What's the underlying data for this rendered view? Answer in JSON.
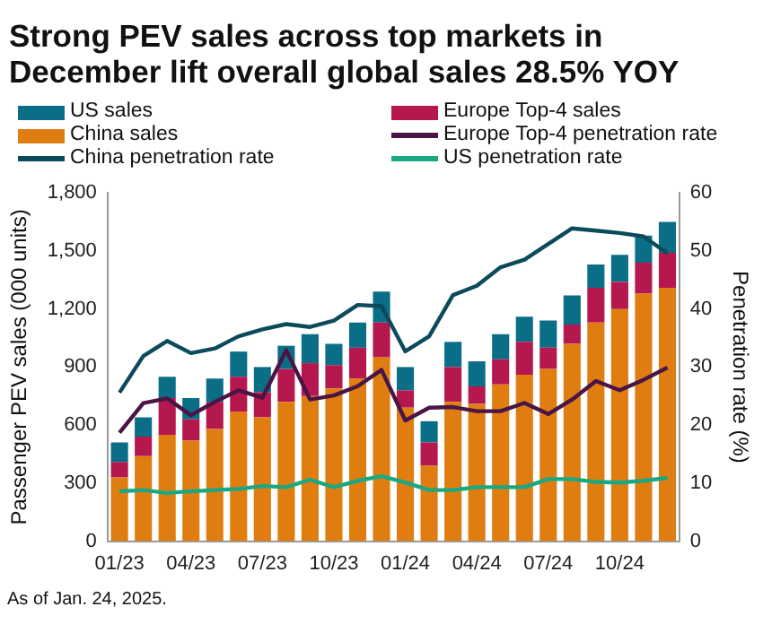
{
  "chart_data": {
    "type": "bar",
    "stacked": true,
    "title": "Strong PEV sales across top markets in December lift overall global sales 28.5% YOY",
    "categories": [
      "01/23",
      null,
      null,
      "04/23",
      null,
      null,
      "07/23",
      null,
      null,
      "10/23",
      null,
      null,
      "01/24",
      null,
      null,
      "04/24",
      null,
      null,
      "07/24",
      null,
      null,
      "10/24",
      null,
      null
    ],
    "series": [
      {
        "name": "China sales",
        "color": "#e07d10",
        "values": [
          330,
          440,
          550,
          520,
          580,
          670,
          640,
          720,
          750,
          790,
          840,
          950,
          690,
          390,
          720,
          710,
          810,
          860,
          890,
          1020,
          1130,
          1200,
          1280,
          1310
        ]
      },
      {
        "name": "Europe Top-4 sales",
        "color": "#b5174f",
        "values": [
          80,
          100,
          190,
          110,
          140,
          180,
          130,
          170,
          170,
          120,
          160,
          180,
          90,
          120,
          180,
          90,
          130,
          170,
          110,
          100,
          180,
          140,
          160,
          180
        ]
      },
      {
        "name": "US sales",
        "color": "#0a6e87",
        "values": [
          100,
          100,
          110,
          110,
          120,
          130,
          130,
          120,
          150,
          110,
          130,
          160,
          120,
          110,
          130,
          130,
          130,
          130,
          140,
          150,
          120,
          140,
          140,
          160
        ]
      },
      {
        "name": "Europe Top-4 penetration rate",
        "type": "line",
        "axis": "y2",
        "color": "#4a1545",
        "values": [
          18.7,
          23.8,
          24.6,
          21.7,
          24.0,
          26.0,
          24.7,
          32.9,
          24.4,
          25.1,
          26.7,
          29.5,
          20.8,
          23.0,
          23.1,
          22.4,
          22.4,
          23.8,
          21.9,
          24.4,
          27.6,
          26.0,
          27.8,
          29.9
        ]
      },
      {
        "name": "China penetration rate",
        "type": "line",
        "axis": "y2",
        "color": "#0b4a5a",
        "values": [
          25.6,
          31.9,
          34.5,
          32.4,
          33.2,
          35.3,
          36.5,
          37.4,
          36.9,
          38.0,
          40.7,
          40.5,
          32.7,
          35.3,
          42.4,
          44.0,
          47.2,
          48.5,
          51.2,
          53.9,
          53.5,
          53.1,
          52.5,
          49.6
        ]
      },
      {
        "name": "US penetration rate",
        "type": "line",
        "axis": "y2",
        "color": "#1aa882",
        "values": [
          8.6,
          8.8,
          8.3,
          8.6,
          8.8,
          9.0,
          9.5,
          9.3,
          10.6,
          9.3,
          10.4,
          11.2,
          10.1,
          8.8,
          8.8,
          9.3,
          9.3,
          9.3,
          10.7,
          10.7,
          10.2,
          10.1,
          10.4,
          10.9
        ]
      }
    ],
    "ylabel": "Passenger PEV sales (000 units)",
    "y2label": "Penetration rate (%)",
    "ylim": [
      0,
      1800
    ],
    "yticks": [
      0,
      300,
      600,
      900,
      {
        "value": 1200,
        "label": "1,200"
      },
      {
        "value": 1500,
        "label": "1,500"
      },
      {
        "value": 1800,
        "label": "1,800"
      }
    ],
    "y2lim": [
      0,
      60
    ],
    "y2ticks": [
      0,
      10,
      20,
      30,
      40,
      50,
      60
    ],
    "legend": "top",
    "grid": false,
    "marker": "none",
    "annotations": [
      "As of Jan. 24, 2025."
    ]
  }
}
